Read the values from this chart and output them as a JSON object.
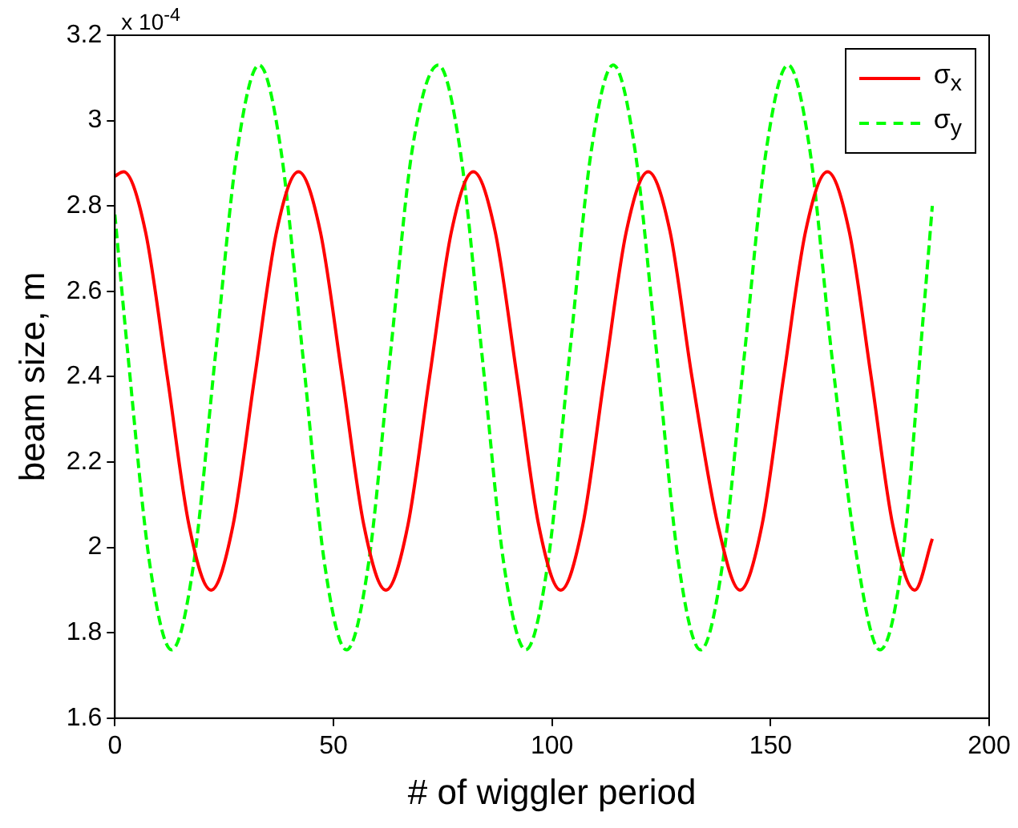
{
  "chart_data": {
    "type": "line",
    "xlabel": "# of wiggler period",
    "ylabel": "beam size, m",
    "annotations": [
      "x 10$^{-4}$"
    ],
    "xlim": [
      0,
      200
    ],
    "xticks": [
      0,
      50,
      100,
      150,
      200
    ],
    "ylim": [
      1.6,
      3.2
    ],
    "yticks": [
      1.6,
      1.8,
      2,
      2.2,
      2.4,
      2.6,
      2.8,
      3,
      3.2
    ],
    "grid": false,
    "legend": "top right",
    "marker": "none",
    "series": [
      {
        "name": "σ$_{x}$",
        "color": "#ff0000",
        "line_style": "solid",
        "x": [
          0,
          2,
          7,
          12,
          17,
          22,
          27,
          32,
          37,
          42,
          47,
          52,
          57,
          62,
          67,
          72,
          77,
          82,
          87,
          92,
          97,
          102,
          107,
          112,
          117,
          122,
          127,
          132,
          138,
          143,
          148,
          153,
          158,
          163,
          168,
          173,
          178,
          183,
          187
        ],
        "values": [
          2.87,
          2.88,
          2.74,
          2.4,
          2.05,
          1.9,
          2.05,
          2.4,
          2.74,
          2.88,
          2.74,
          2.4,
          2.05,
          1.9,
          2.05,
          2.4,
          2.74,
          2.88,
          2.74,
          2.4,
          2.05,
          1.9,
          2.05,
          2.4,
          2.74,
          2.88,
          2.74,
          2.4,
          2.05,
          1.9,
          2.05,
          2.4,
          2.74,
          2.88,
          2.74,
          2.4,
          2.05,
          1.9,
          2.02
        ]
      },
      {
        "name": "σ$_{y}$",
        "color": "#00ff00",
        "line_style": "dashed",
        "x": [
          0,
          3,
          8,
          13,
          18,
          23,
          28,
          33,
          38,
          43,
          48,
          53,
          58,
          63,
          68,
          74,
          79,
          84,
          89,
          94,
          99,
          104,
          109,
          114,
          119,
          124,
          129,
          134,
          139,
          144,
          149,
          154,
          159,
          164,
          170,
          175,
          180,
          185,
          187
        ],
        "values": [
          2.78,
          2.45,
          1.96,
          1.76,
          1.96,
          2.45,
          2.93,
          3.13,
          2.93,
          2.45,
          1.96,
          1.76,
          1.96,
          2.45,
          2.93,
          3.13,
          2.93,
          2.45,
          1.96,
          1.76,
          1.96,
          2.45,
          2.93,
          3.13,
          2.93,
          2.45,
          1.96,
          1.76,
          1.96,
          2.45,
          2.93,
          3.13,
          2.93,
          2.45,
          1.96,
          1.76,
          1.96,
          2.55,
          2.8
        ]
      }
    ]
  }
}
